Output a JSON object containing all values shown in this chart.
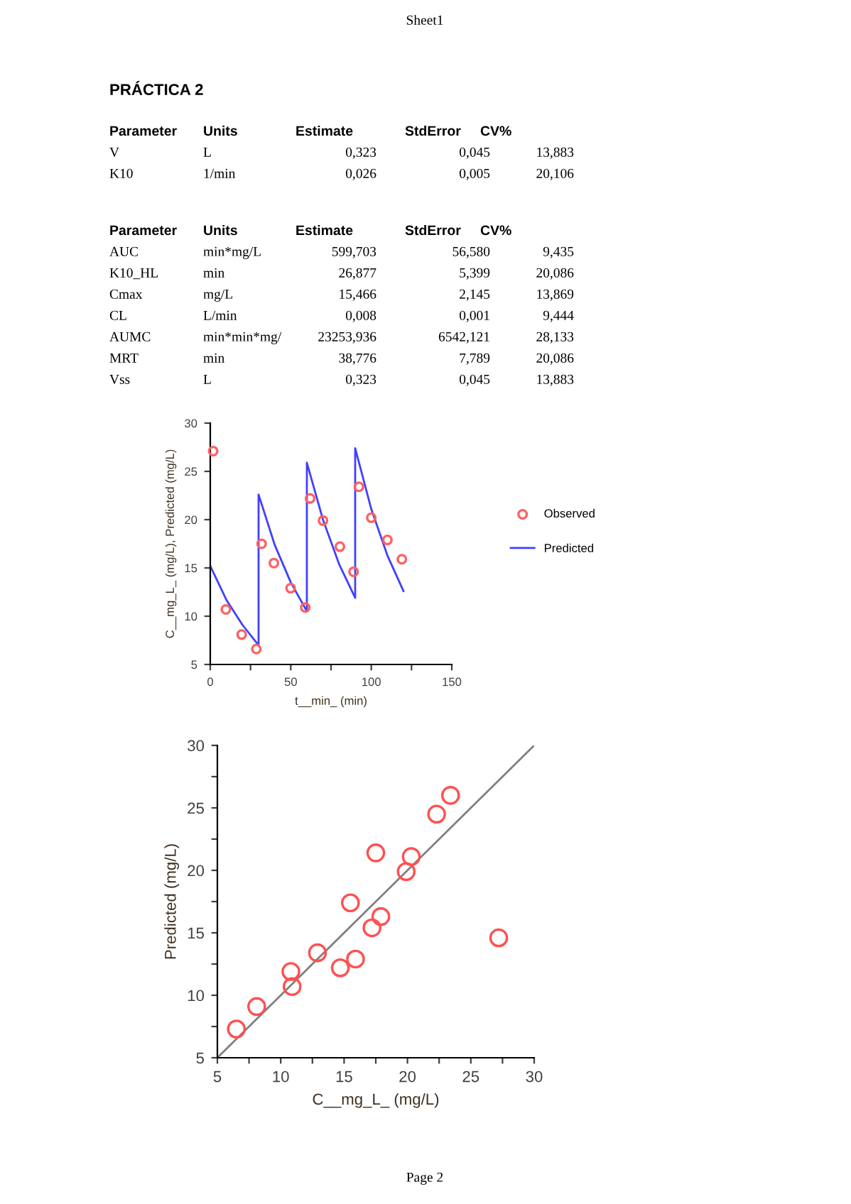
{
  "chart_data": [
    {
      "type": "other",
      "title": "PRÁCTICA 2",
      "annotations": [
        "Sheet1",
        "Parameter",
        "Units",
        "Estimate",
        "StdError",
        "CV%",
        "V",
        "L",
        "0,323",
        "0,045",
        "13,883",
        "K10",
        "1/min",
        "0,026",
        "0,005",
        "20,106",
        "Parameter",
        "Units",
        "Estimate",
        "StdError",
        "CV%",
        "AUC",
        "min*mg/L",
        "599,703",
        "56,580",
        "9,435",
        "K10_HL",
        "min",
        "26,877",
        "5,399",
        "20,086",
        "Cmax",
        "mg/L",
        "15,466",
        "2,145",
        "13,869",
        "CL",
        "L/min",
        "0,008",
        "0,001",
        "9,444",
        "AUMC",
        "min*min*mg/",
        "23253,936",
        "6542,121",
        "28,133",
        "MRT",
        "min",
        "38,776",
        "7,789",
        "20,086",
        "Vss",
        "L",
        "0,323",
        "0,045",
        "13,883",
        "Page 2"
      ]
    },
    {
      "type": "scatter",
      "xlabel": "t__min_ (min)",
      "ylabel": "C__mg_L_ (mg/L), Predicted (mg/L)",
      "xlim": [
        0,
        150
      ],
      "ylim": [
        5,
        30
      ],
      "xticks": [
        0,
        {
          "value": 25,
          "label": null
        },
        50,
        {
          "value": 75,
          "label": null
        },
        100,
        {
          "value": 125,
          "label": null
        },
        150
      ],
      "yticks": [
        5,
        10,
        15,
        20,
        25,
        30
      ],
      "legend": "right",
      "grid": false,
      "series": [
        {
          "name": "Observed",
          "type": "scatter",
          "marker": "circle",
          "color": "#ff6060",
          "x": [
            1.8,
            9.7,
            19.5,
            28.6,
            31.9,
            39.5,
            49.9,
            59,
            62,
            70,
            80.5,
            89,
            92.3,
            100,
            110,
            119
          ],
          "values": [
            27.1,
            10.7,
            8.1,
            6.6,
            17.5,
            15.5,
            12.9,
            10.9,
            22.2,
            19.9,
            17.2,
            14.6,
            23.4,
            20.2,
            17.9,
            15.9
          ]
        },
        {
          "name": "Predicted",
          "type": "line",
          "marker": "none",
          "line_style": "solid",
          "color": "#4040ff",
          "x": [
            0,
            10,
            20,
            30,
            30,
            40,
            50,
            60,
            60,
            70,
            80,
            90,
            90,
            100,
            110,
            120
          ],
          "values": [
            15.2,
            11.7,
            9.1,
            7.0,
            22.6,
            17.4,
            13.5,
            10.5,
            25.9,
            20.0,
            15.4,
            11.9,
            27.4,
            21.1,
            16.3,
            12.6
          ]
        }
      ]
    },
    {
      "type": "scatter",
      "xlabel": "C__mg_L_ (mg/L)",
      "ylabel": "Predicted (mg/L)",
      "xlim": [
        5,
        30
      ],
      "ylim": [
        5,
        30
      ],
      "xticks": [
        5,
        {
          "value": 7.5,
          "label": null
        },
        10,
        {
          "value": 12.5,
          "label": null
        },
        15,
        {
          "value": 17.5,
          "label": null
        },
        20,
        {
          "value": 22.5,
          "label": null
        },
        25,
        {
          "value": 27.5,
          "label": null
        },
        30
      ],
      "yticks": [
        5,
        {
          "value": 7.5,
          "label": null
        },
        10,
        {
          "value": 12.5,
          "label": null
        },
        15,
        {
          "value": 17.5,
          "label": null
        },
        20,
        {
          "value": 22.5,
          "label": null
        },
        25,
        {
          "value": 27.5,
          "label": null
        },
        30
      ],
      "legend": false,
      "grid": false,
      "series": [
        {
          "type": "line",
          "marker": "none",
          "line_style": "solid",
          "color": "#808080",
          "x": [
            5,
            30
          ],
          "values": [
            5,
            30
          ]
        },
        {
          "type": "scatter",
          "marker": "circle",
          "color": "#ff5050",
          "x": [
            6.5,
            8.1,
            10.8,
            10.9,
            12.9,
            14.7,
            15.5,
            15.9,
            17.2,
            17.5,
            17.9,
            19.9,
            20.3,
            22.3,
            23.4,
            27.2
          ],
          "values": [
            7.3,
            9.1,
            11.9,
            10.7,
            13.4,
            12.2,
            17.4,
            12.9,
            15.4,
            21.4,
            16.3,
            19.9,
            21.1,
            24.5,
            26.0,
            14.6
          ]
        }
      ]
    }
  ]
}
